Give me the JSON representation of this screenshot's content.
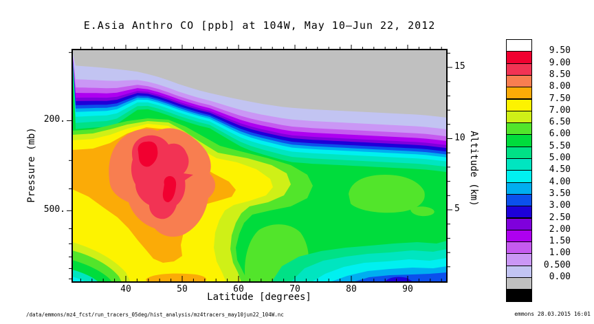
{
  "title": "E.Asia Anthro CO [ppb] at 104W, May 10–Jun 22, 2012",
  "axes": {
    "x": {
      "label": "Latitude [degrees]",
      "ticks": [
        "40",
        "50",
        "60",
        "70",
        "80",
        "90"
      ]
    },
    "y_left": {
      "label": "Pressure (mb)",
      "ticks": [
        "200.",
        "500."
      ]
    },
    "y_right": {
      "label": "Altitude (km)",
      "ticks": [
        "15",
        "10",
        "5"
      ]
    }
  },
  "palette": {
    "white": "#FFFFFF",
    "crimson": "#F10030",
    "pink": "#F23354",
    "salmon": "#F87E50",
    "orange": "#FBAB07",
    "yellow": "#FDF300",
    "yellowgreen": "#CFF017",
    "brightgreen": "#52E52B",
    "green": "#00DC3C",
    "springgreen": "#00E186",
    "turquoise": "#00E5C0",
    "cyan": "#00F0F0",
    "skyblue": "#00AEF0",
    "blue": "#0B50EC",
    "darkblue": "#1D00D9",
    "violet": "#7F00DC",
    "purple": "#AE00F0",
    "orchid": "#C55BEF",
    "lightpurple": "#CA97F5",
    "lavender": "#C2C4F2",
    "gray": "#C0C0C0",
    "black": "#000000"
  },
  "colorbar": {
    "cells": [
      {
        "label": "9.50",
        "color_key": "white"
      },
      {
        "label": "9.00",
        "color_key": "crimson"
      },
      {
        "label": "8.50",
        "color_key": "pink"
      },
      {
        "label": "8.00",
        "color_key": "salmon"
      },
      {
        "label": "7.50",
        "color_key": "orange"
      },
      {
        "label": "7.00",
        "color_key": "yellow"
      },
      {
        "label": "6.50",
        "color_key": "yellowgreen"
      },
      {
        "label": "6.00",
        "color_key": "brightgreen"
      },
      {
        "label": "5.50",
        "color_key": "green"
      },
      {
        "label": "5.00",
        "color_key": "springgreen"
      },
      {
        "label": "4.50",
        "color_key": "turquoise"
      },
      {
        "label": "4.00",
        "color_key": "cyan"
      },
      {
        "label": "3.50",
        "color_key": "skyblue"
      },
      {
        "label": "3.00",
        "color_key": "blue"
      },
      {
        "label": "2.50",
        "color_key": "darkblue"
      },
      {
        "label": "2.00",
        "color_key": "violet"
      },
      {
        "label": "1.50",
        "color_key": "purple"
      },
      {
        "label": "1.00",
        "color_key": "orchid"
      },
      {
        "label": "0.500",
        "color_key": "lightpurple"
      },
      {
        "label": "0.00",
        "color_key": "lavender"
      },
      {
        "label": "",
        "color_key": "gray"
      },
      {
        "label": "",
        "color_key": "black"
      }
    ]
  },
  "footer": {
    "left": "/data/emmons/mz4_fcst/run_tracers_05deg/hist_analysis/mz4tracers_may10jun22_104W.nc",
    "right": "emmons 28.03.2015 16:01"
  },
  "chart_data": {
    "type": "filled_contour",
    "title": "E.Asia Anthro CO [ppb] at 104W, May 10–Jun 22, 2012",
    "units": "ppb",
    "xlabel": "Latitude [degrees]",
    "x_ticks": [
      40,
      50,
      60,
      70,
      80,
      90
    ],
    "x_range_displayed": [
      31,
      97
    ],
    "ylabel_left": "Pressure (mb)",
    "y_left_scale": "log",
    "y_left_range_mb": [
      1030,
      97
    ],
    "y_left_ticks": [
      200,
      500
    ],
    "ylabel_right": "Altitude (km)",
    "y_right_range_km": [
      0,
      16.3
    ],
    "y_right_ticks": [
      5,
      10,
      15
    ],
    "contour_interval": 0.5,
    "levels": [
      0.0,
      0.5,
      1.0,
      1.5,
      2.0,
      2.5,
      3.0,
      3.5,
      4.0,
      4.5,
      5.0,
      5.5,
      6.0,
      6.5,
      7.0,
      7.5,
      8.0,
      8.5,
      9.0,
      9.5
    ],
    "legend_position": "right",
    "grid": false,
    "features": [
      {
        "name": "anthro_CO_plume_core",
        "value_ppb": "9.0-9.5",
        "latitude_deg": "41-47",
        "pressure_mb": "280-460",
        "note": "two crimson maxima inside deep-pink 8.5-9.0 region"
      },
      {
        "name": "plume_envelope",
        "value_ppb": "7.0-8.5",
        "latitude_deg": "32-60",
        "pressure_mb": "200-1000",
        "note": "yellow/orange/salmon shells around core, orange streak near surface 40-55N"
      },
      {
        "name": "stratosphere_low_CO",
        "value_ppb": "0.0-0.5",
        "note": "gray region above ~12-16 km; tropopause bands (purple/blue, 0.5-4.5 ppb) slope downward from 30N to 90N"
      },
      {
        "name": "mid_troposphere_background",
        "value_ppb": "5.5-6.5",
        "latitude_deg": "60-90",
        "note": "green with brightgreen patches near 63-75N, 4-6 km"
      },
      {
        "name": "high_latitude_boundary_layer",
        "value_ppb": "3.0-4.5",
        "latitude_deg": "65-90",
        "pressure_mb": "750-1000",
        "note": "cyan/blue bands near surface, darkest blue dip near 75-80N"
      }
    ]
  }
}
